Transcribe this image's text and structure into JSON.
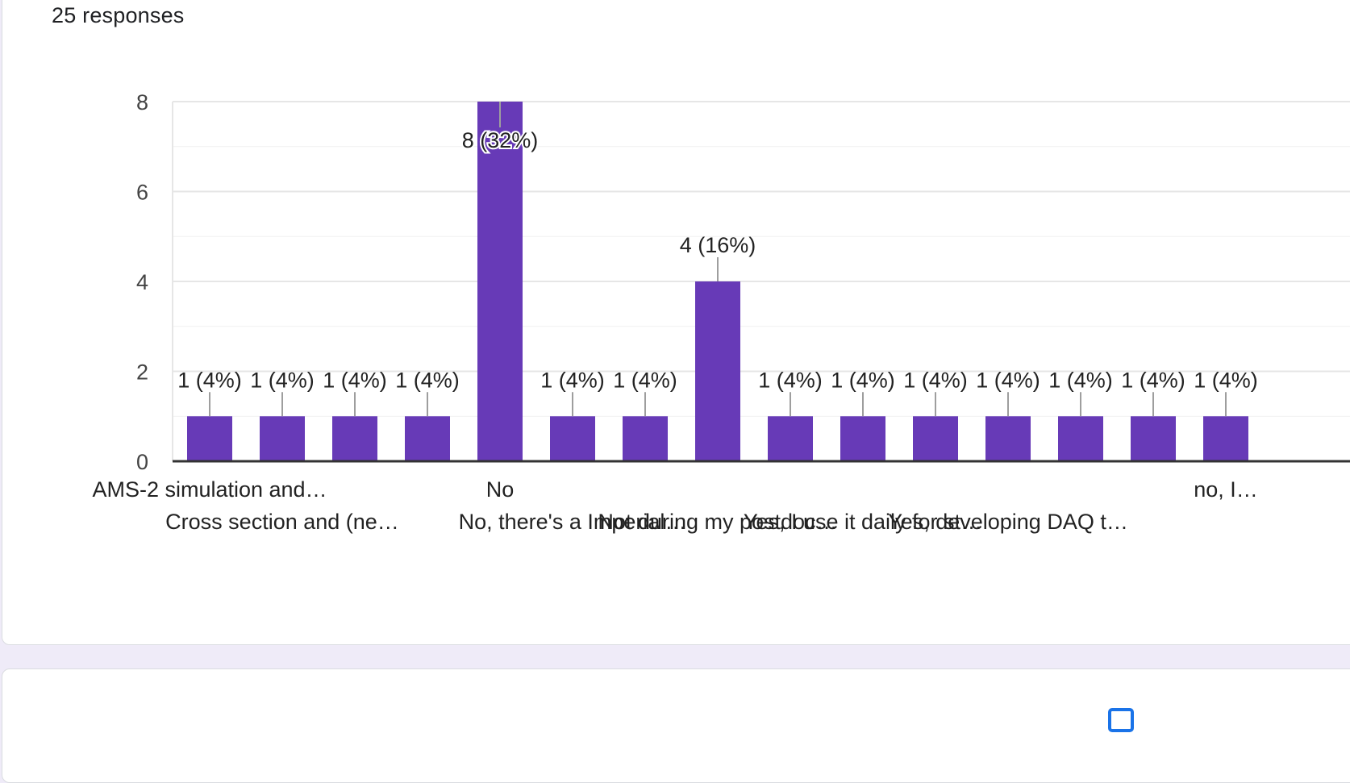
{
  "summary": {
    "responses": "25 responses"
  },
  "colors": {
    "bar": "#673ab7",
    "axis": "#333333",
    "grid": "#e6e6e6",
    "leader": "#9e9e9e"
  },
  "icons": {
    "bottom_card_icon": "copy-icon"
  },
  "chart_data": {
    "type": "bar",
    "title": "",
    "xlabel": "",
    "ylabel": "",
    "ylim": [
      0,
      8
    ],
    "yticks": [
      0,
      2,
      4,
      6,
      8
    ],
    "grid": true,
    "categories": [
      "AMS-2 simulation and…",
      "Cross section and (ne…",
      "",
      "",
      "No",
      "No, there's a Imperial…",
      "",
      "Not during my postdoc…",
      "",
      "Yes, I use it daily for st…",
      "",
      "Yes, developing DAQ t…",
      "",
      "",
      "no, I…"
    ],
    "values": [
      1,
      1,
      1,
      1,
      8,
      1,
      1,
      4,
      1,
      1,
      1,
      1,
      1,
      1,
      1
    ],
    "data_labels": [
      "1 (4%)",
      "1 (4%)",
      "1 (4%)",
      "1 (4%)",
      "8 (32%)",
      "1 (4%)",
      "1 (4%)",
      "4 (16%)",
      "1 (4%)",
      "1 (4%)",
      "1 (4%)",
      "1 (4%)",
      "1 (4%)",
      "1 (4%)",
      "1 (4%)"
    ]
  }
}
